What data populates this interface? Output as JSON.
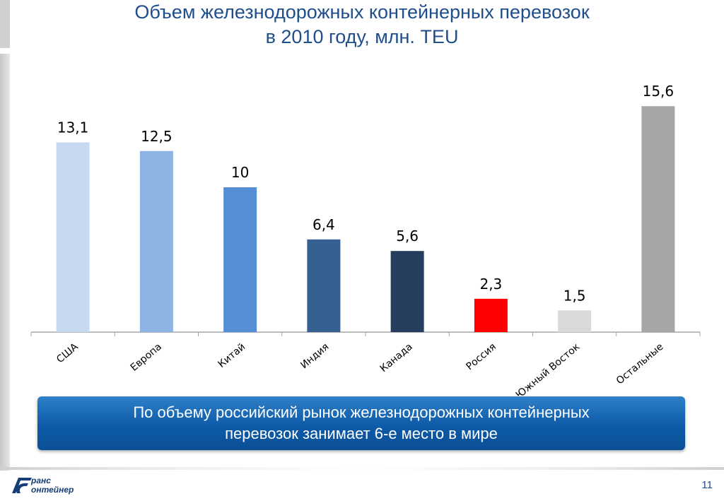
{
  "slide": {
    "title_line1": "Объем железнодорожных контейнерных перевозок",
    "title_line2": "в 2010 году, млн. TEU",
    "banner_line1": "По объему российский рынок железнодорожных контейнерных",
    "banner_line2": "перевозок занимает 6-е место в мире",
    "page_number": "11",
    "logo_line1": "ранс",
    "logo_line2": "онтейнер"
  },
  "chart_data": {
    "type": "bar",
    "title": "Объем железнодорожных контейнерных перевозок в 2010 году, млн. TEU",
    "categories": [
      "США",
      "Европа",
      "Китай",
      "Индия",
      "Канада",
      "Россия",
      "Южный Восток",
      "Остальные"
    ],
    "values": [
      13.1,
      12.5,
      10,
      6.4,
      5.6,
      2.3,
      1.5,
      15.6
    ],
    "value_labels": [
      "13,1",
      "12,5",
      "10",
      "6,4",
      "5,6",
      "2,3",
      "1,5",
      "15,6"
    ],
    "colors": [
      "#c6d9f1",
      "#8db3e2",
      "#558ed5",
      "#376092",
      "#253e5e",
      "#ff0000",
      "#d9d9d9",
      "#a6a6a6"
    ],
    "ylim": [
      0,
      16
    ],
    "grid": false,
    "xlabel": "",
    "ylabel": ""
  }
}
